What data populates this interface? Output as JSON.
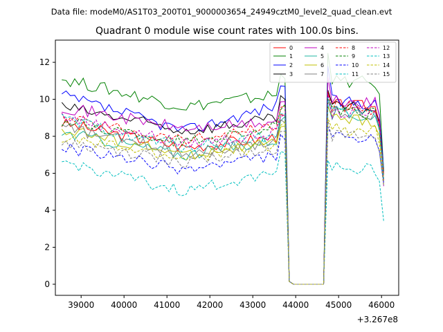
{
  "header": {
    "data_file": "Data file: modeM0/AS1T03_200T01_9000003654_24949cztM0_level2_quad_clean.evt"
  },
  "chart_data": {
    "type": "line",
    "title": "Quadrant 0 module wise count rates with 100.0s bins.",
    "xlabel": "",
    "ylabel": "",
    "offset_label": "+3.267e8",
    "xlim": [
      38400,
      46400
    ],
    "ylim": [
      -0.6,
      13.2
    ],
    "xticks": [
      39000,
      40000,
      41000,
      42000,
      43000,
      44000,
      45000,
      46000
    ],
    "xtick_labels": [
      "39000",
      "40000",
      "41000",
      "42000",
      "43000",
      "44000",
      "45000",
      "46000"
    ],
    "yticks": [
      0,
      2,
      4,
      6,
      8,
      10,
      12
    ],
    "ytick_labels": [
      "0",
      "2",
      "4",
      "6",
      "8",
      "10",
      "12"
    ],
    "grid": false,
    "legend_placement": "top-right",
    "legend_columns": 4,
    "time_start": 38550,
    "bin": 100,
    "gap_start": 43850,
    "gap_end": 44650,
    "gap_value": 0,
    "series": [
      {
        "name": "0",
        "color": "#ff0000",
        "dash": false,
        "level_start": 8.7,
        "level_mid": 7.4,
        "level_end": 8.0,
        "post_peak": 10.4,
        "post_level": 9.7,
        "end_value": 5.6
      },
      {
        "name": "1",
        "color": "#008000",
        "dash": false,
        "level_start": 11.1,
        "level_mid": 9.6,
        "level_end": 10.3,
        "post_peak": 12.5,
        "post_level": 11.0,
        "end_value": 6.1
      },
      {
        "name": "2",
        "color": "#0000ff",
        "dash": false,
        "level_start": 10.2,
        "level_mid": 8.3,
        "level_end": 9.8,
        "post_peak": 11.8,
        "post_level": 9.9,
        "end_value": 6.3
      },
      {
        "name": "3",
        "color": "#000000",
        "dash": false,
        "level_start": 9.6,
        "level_mid": 8.3,
        "level_end": 9.0,
        "post_peak": 10.5,
        "post_level": 9.6,
        "end_value": 6.1
      },
      {
        "name": "4",
        "color": "#bf00bf",
        "dash": false,
        "level_start": 9.6,
        "level_mid": 8.4,
        "level_end": 8.8,
        "post_peak": 11.2,
        "post_level": 9.9,
        "end_value": 5.3
      },
      {
        "name": "5",
        "color": "#1fb5a0",
        "dash": false,
        "level_start": 8.2,
        "level_mid": 7.0,
        "level_end": 7.9,
        "post_peak": 9.7,
        "post_level": 9.2,
        "end_value": 6.3
      },
      {
        "name": "6",
        "color": "#bfbf00",
        "dash": false,
        "level_start": 8.4,
        "level_mid": 7.0,
        "level_end": 7.7,
        "post_peak": 9.6,
        "post_level": 8.9,
        "end_value": 5.9
      },
      {
        "name": "7",
        "color": "#808080",
        "dash": false,
        "level_start": 8.5,
        "level_mid": 7.1,
        "level_end": 7.8,
        "post_peak": 9.9,
        "post_level": 9.3,
        "end_value": 6.0
      },
      {
        "name": "8",
        "color": "#ff0000",
        "dash": true,
        "level_start": 9.0,
        "level_mid": 7.8,
        "level_end": 8.6,
        "post_peak": 10.4,
        "post_level": 9.6,
        "end_value": 5.9
      },
      {
        "name": "9",
        "color": "#008000",
        "dash": true,
        "level_start": 8.8,
        "level_mid": 7.7,
        "level_end": 8.6,
        "post_peak": 10.0,
        "post_level": 9.3,
        "end_value": 5.7
      },
      {
        "name": "10",
        "color": "#0000ff",
        "dash": true,
        "level_start": 7.4,
        "level_mid": 6.2,
        "level_end": 7.0,
        "post_peak": 8.5,
        "post_level": 7.9,
        "end_value": 5.5
      },
      {
        "name": "11",
        "color": "#00bfbf",
        "dash": true,
        "level_start": 6.6,
        "level_mid": 5.0,
        "level_end": 6.2,
        "post_peak": 6.7,
        "post_level": 6.3,
        "end_value": 3.4
      },
      {
        "name": "12",
        "color": "#bf00bf",
        "dash": true,
        "level_start": 9.1,
        "level_mid": 7.6,
        "level_end": 8.2,
        "post_peak": 10.3,
        "post_level": 9.3,
        "end_value": 5.6
      },
      {
        "name": "13",
        "color": "#00bfbf",
        "dash": true,
        "level_start": 8.9,
        "level_mid": 7.4,
        "level_end": 8.1,
        "post_peak": 10.1,
        "post_level": 9.3,
        "end_value": 5.6
      },
      {
        "name": "14",
        "color": "#bfbf00",
        "dash": true,
        "level_start": 7.9,
        "level_mid": 6.8,
        "level_end": 7.6,
        "post_peak": 9.0,
        "post_level": 8.4,
        "end_value": 5.4
      },
      {
        "name": "15",
        "color": "#808080",
        "dash": true,
        "level_start": 7.6,
        "level_mid": 6.6,
        "level_end": 7.4,
        "post_peak": 8.9,
        "post_level": 8.0,
        "end_value": 5.3
      }
    ]
  }
}
